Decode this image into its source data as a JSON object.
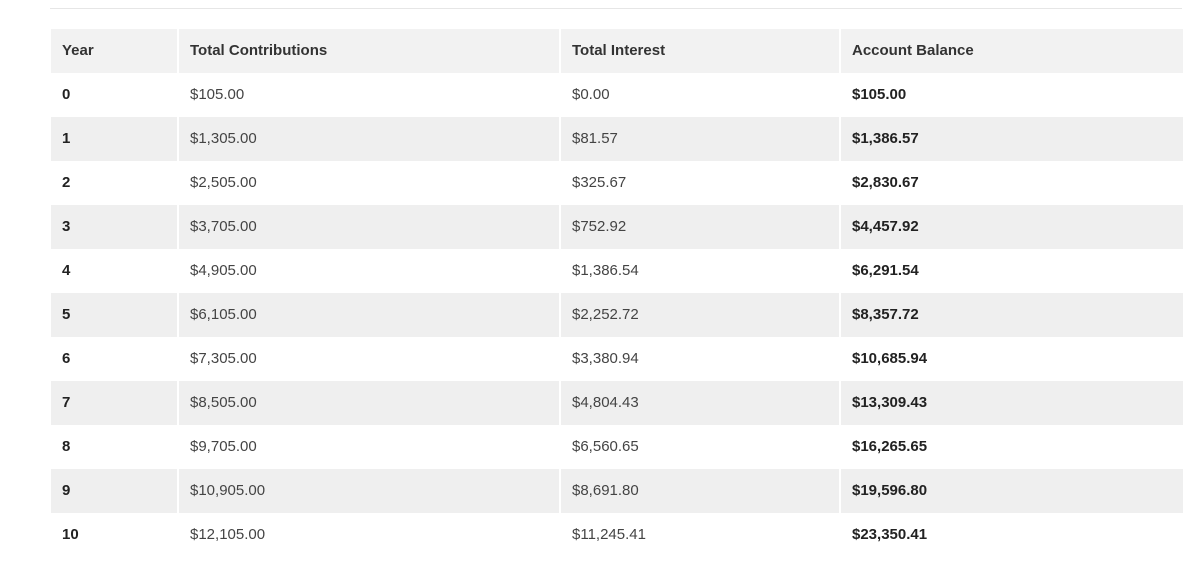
{
  "table": {
    "headers": [
      "Year",
      "Total Contributions",
      "Total Interest",
      "Account Balance"
    ],
    "rows": [
      {
        "year": "0",
        "contributions": "$105.00",
        "interest": "$0.00",
        "balance": "$105.00"
      },
      {
        "year": "1",
        "contributions": "$1,305.00",
        "interest": "$81.57",
        "balance": "$1,386.57"
      },
      {
        "year": "2",
        "contributions": "$2,505.00",
        "interest": "$325.67",
        "balance": "$2,830.67"
      },
      {
        "year": "3",
        "contributions": "$3,705.00",
        "interest": "$752.92",
        "balance": "$4,457.92"
      },
      {
        "year": "4",
        "contributions": "$4,905.00",
        "interest": "$1,386.54",
        "balance": "$6,291.54"
      },
      {
        "year": "5",
        "contributions": "$6,105.00",
        "interest": "$2,252.72",
        "balance": "$8,357.72"
      },
      {
        "year": "6",
        "contributions": "$7,305.00",
        "interest": "$3,380.94",
        "balance": "$10,685.94"
      },
      {
        "year": "7",
        "contributions": "$8,505.00",
        "interest": "$4,804.43",
        "balance": "$13,309.43"
      },
      {
        "year": "8",
        "contributions": "$9,705.00",
        "interest": "$6,560.65",
        "balance": "$16,265.65"
      },
      {
        "year": "9",
        "contributions": "$10,905.00",
        "interest": "$8,691.80",
        "balance": "$19,596.80"
      },
      {
        "year": "10",
        "contributions": "$12,105.00",
        "interest": "$11,245.41",
        "balance": "$23,350.41"
      }
    ]
  },
  "colors": {
    "header_bg": "#f2f2f2",
    "stripe_bg": "#efefef",
    "row_bg": "#ffffff",
    "text": "#222222"
  }
}
